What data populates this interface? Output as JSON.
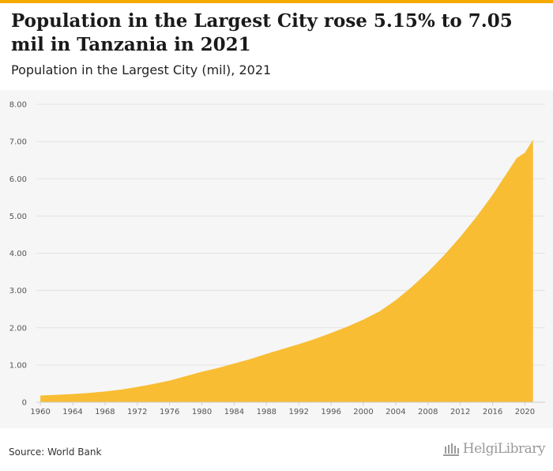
{
  "header": {
    "title": "Population in the Largest City rose 5.15% to 7.05 mil in Tanzania in 2021",
    "subtitle": "Population in the Largest City (mil), 2021"
  },
  "footer": {
    "source": "Source: World Bank",
    "logo_text": "HelgiLibrary"
  },
  "colors": {
    "accent": "#f5a800",
    "area_fill": "#f8bd33",
    "panel_background": "#f6f6f6"
  },
  "chart_data": {
    "type": "area",
    "title": "Population in the Largest City rose 5.15% to 7.05 mil in Tanzania in 2021",
    "subtitle": "Population in the Largest City (mil), 2021",
    "xlabel": "",
    "ylabel": "",
    "xlim": [
      1960,
      2021
    ],
    "ylim": [
      0,
      8
    ],
    "grid": true,
    "legend": "none",
    "x_ticks": [
      1960,
      1964,
      1968,
      1972,
      1976,
      1980,
      1984,
      1988,
      1992,
      1996,
      2000,
      2004,
      2008,
      2012,
      2016,
      2020
    ],
    "y_ticks": [
      "0",
      "1.00",
      "2.00",
      "3.00",
      "4.00",
      "5.00",
      "6.00",
      "7.00",
      "8.00"
    ],
    "x": [
      1960,
      1962,
      1964,
      1966,
      1968,
      1970,
      1972,
      1974,
      1976,
      1978,
      1980,
      1982,
      1984,
      1986,
      1988,
      1990,
      1992,
      1994,
      1996,
      1998,
      2000,
      2002,
      2004,
      2006,
      2008,
      2010,
      2012,
      2014,
      2016,
      2018,
      2019,
      2020,
      2021
    ],
    "values": [
      0.18,
      0.2,
      0.22,
      0.25,
      0.29,
      0.34,
      0.41,
      0.49,
      0.58,
      0.7,
      0.82,
      0.92,
      1.04,
      1.16,
      1.3,
      1.43,
      1.56,
      1.7,
      1.86,
      2.03,
      2.22,
      2.44,
      2.74,
      3.1,
      3.5,
      3.95,
      4.44,
      4.98,
      5.57,
      6.23,
      6.56,
      6.7,
      7.05
    ]
  }
}
